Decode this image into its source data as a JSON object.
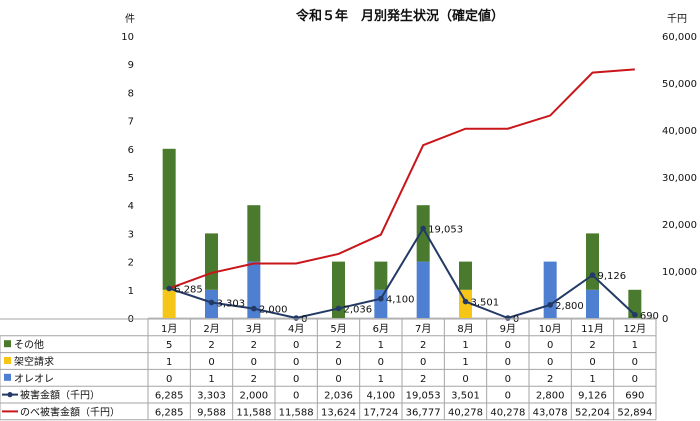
{
  "chart_data": {
    "type": "bar",
    "title": "令和５年　月別発生状況（確定値）",
    "left_axis_unit": "件",
    "right_axis_unit": "千円",
    "left_ylim": [
      0,
      10
    ],
    "right_ylim": [
      0,
      60000
    ],
    "left_ticks": [
      "0",
      "1",
      "2",
      "3",
      "4",
      "5",
      "6",
      "7",
      "8",
      "9",
      "10"
    ],
    "right_ticks": [
      "0",
      "10,000",
      "20,000",
      "30,000",
      "40,000",
      "50,000",
      "60,000"
    ],
    "categories": [
      "1月",
      "2月",
      "3月",
      "4月",
      "5月",
      "6月",
      "7月",
      "8月",
      "9月",
      "10月",
      "11月",
      "12月"
    ],
    "colors": {
      "other": "#4a7a2e",
      "kaku": "#f5c518",
      "oreore": "#4f7fd0",
      "damage": "#233a66",
      "cumulative": "#c8161b"
    },
    "series": [
      {
        "name": "その他",
        "kind": "bar",
        "values": [
          5,
          2,
          2,
          0,
          2,
          1,
          2,
          1,
          0,
          0,
          2,
          1
        ],
        "labels": [
          "5",
          "2",
          "2",
          "0",
          "2",
          "1",
          "2",
          "1",
          "0",
          "0",
          "2",
          "1"
        ]
      },
      {
        "name": "架空請求",
        "kind": "bar",
        "values": [
          1,
          0,
          0,
          0,
          0,
          0,
          0,
          1,
          0,
          0,
          0,
          0
        ],
        "labels": [
          "1",
          "0",
          "0",
          "0",
          "0",
          "0",
          "0",
          "1",
          "0",
          "0",
          "0",
          "0"
        ]
      },
      {
        "name": "オレオレ",
        "kind": "bar",
        "values": [
          0,
          1,
          2,
          0,
          0,
          1,
          2,
          0,
          0,
          2,
          1,
          0
        ],
        "labels": [
          "0",
          "1",
          "2",
          "0",
          "0",
          "1",
          "2",
          "0",
          "0",
          "2",
          "1",
          "0"
        ]
      },
      {
        "name": "被害金額（千円）",
        "kind": "line_marker",
        "values": [
          6285,
          3303,
          2000,
          0,
          2036,
          4100,
          19053,
          3501,
          0,
          2800,
          9126,
          690
        ],
        "labels": [
          "6,285",
          "3,303",
          "2,000",
          "0",
          "2,036",
          "4,100",
          "19,053",
          "3,501",
          "0",
          "2,800",
          "9,126",
          "690"
        ]
      },
      {
        "name": "のべ被害金額（千円）",
        "kind": "line",
        "values": [
          6285,
          9588,
          11588,
          11588,
          13624,
          17724,
          36777,
          40278,
          40278,
          43078,
          52204,
          52894
        ],
        "labels": [
          "6,285",
          "9,588",
          "11,588",
          "11,588",
          "13,624",
          "17,724",
          "36,777",
          "40,278",
          "40,278",
          "43,078",
          "52,204",
          "52,894"
        ]
      }
    ],
    "point_labels": [
      "6,285",
      "3,303",
      "2,000",
      "0",
      "2,036",
      "4,100",
      "19,053",
      "3,501",
      "0",
      "2,800",
      "9,126",
      "690"
    ]
  }
}
